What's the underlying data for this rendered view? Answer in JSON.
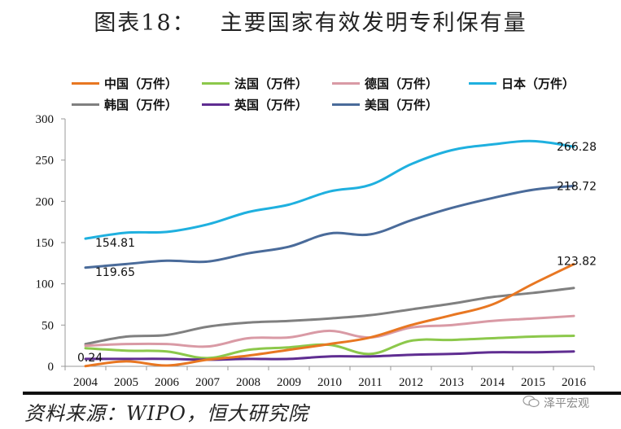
{
  "header": {
    "figure_no": "图表18：",
    "title": "主要国家有效发明专利保有量"
  },
  "footer": {
    "source": "资料来源：WIPO，恒大研究院",
    "watermark": "泽平宏观",
    "watermark_icon": "wechat-icon"
  },
  "chart_data": {
    "type": "line",
    "title": "主要国家有效发明专利保有量",
    "xlabel": "",
    "ylabel": "",
    "x": [
      2004,
      2005,
      2006,
      2007,
      2008,
      2009,
      2010,
      2011,
      2012,
      2013,
      2014,
      2015,
      2016
    ],
    "ylim": [
      0,
      300
    ],
    "yticks": [
      0,
      50,
      100,
      150,
      200,
      250,
      300
    ],
    "grid": false,
    "legend_position": "top",
    "series": [
      {
        "name": "中国（万件）",
        "color": "#E87722",
        "values": [
          0.24,
          6,
          1,
          8,
          13,
          20,
          27,
          35,
          50,
          62,
          75,
          100,
          123.82
        ]
      },
      {
        "name": "法国（万件）",
        "color": "#8CC84B",
        "values": [
          22,
          19,
          18,
          10,
          20,
          23,
          26,
          15,
          31,
          32,
          34,
          36,
          37
        ]
      },
      {
        "name": "德国（万件）",
        "color": "#D99AA5",
        "values": [
          25,
          27,
          27,
          24,
          34,
          35,
          43,
          35,
          47,
          50,
          55,
          58,
          61
        ]
      },
      {
        "name": "日本（万件）",
        "color": "#1FB0DF",
        "values": [
          154.81,
          162,
          163,
          172,
          187,
          196,
          212,
          220,
          245,
          262,
          269,
          273,
          266.28
        ]
      },
      {
        "name": "韩国（万件）",
        "color": "#808080",
        "values": [
          27,
          36,
          38,
          48,
          53,
          55,
          58,
          62,
          69,
          76,
          84,
          89,
          95
        ]
      },
      {
        "name": "英国（万件）",
        "color": "#5F2D91",
        "values": [
          9,
          9,
          9,
          8,
          9,
          9,
          12,
          12,
          14,
          15,
          17,
          17,
          18
        ]
      },
      {
        "name": "美国（万件）",
        "color": "#4A6B9A",
        "values": [
          119.65,
          124,
          128,
          127,
          137,
          145,
          161,
          160,
          177,
          192,
          204,
          214,
          218.72
        ]
      }
    ],
    "annotations": [
      {
        "series": "日本（万件）",
        "x": 2004,
        "text": "154.81"
      },
      {
        "series": "美国（万件）",
        "x": 2004,
        "text": "119.65"
      },
      {
        "series": "中国（万件）",
        "x": 2004,
        "text": "0.24"
      },
      {
        "series": "日本（万件）",
        "x": 2016,
        "text": "266.28"
      },
      {
        "series": "美国（万件）",
        "x": 2016,
        "text": "218.72"
      },
      {
        "series": "中国（万件）",
        "x": 2016,
        "text": "123.82"
      }
    ]
  }
}
